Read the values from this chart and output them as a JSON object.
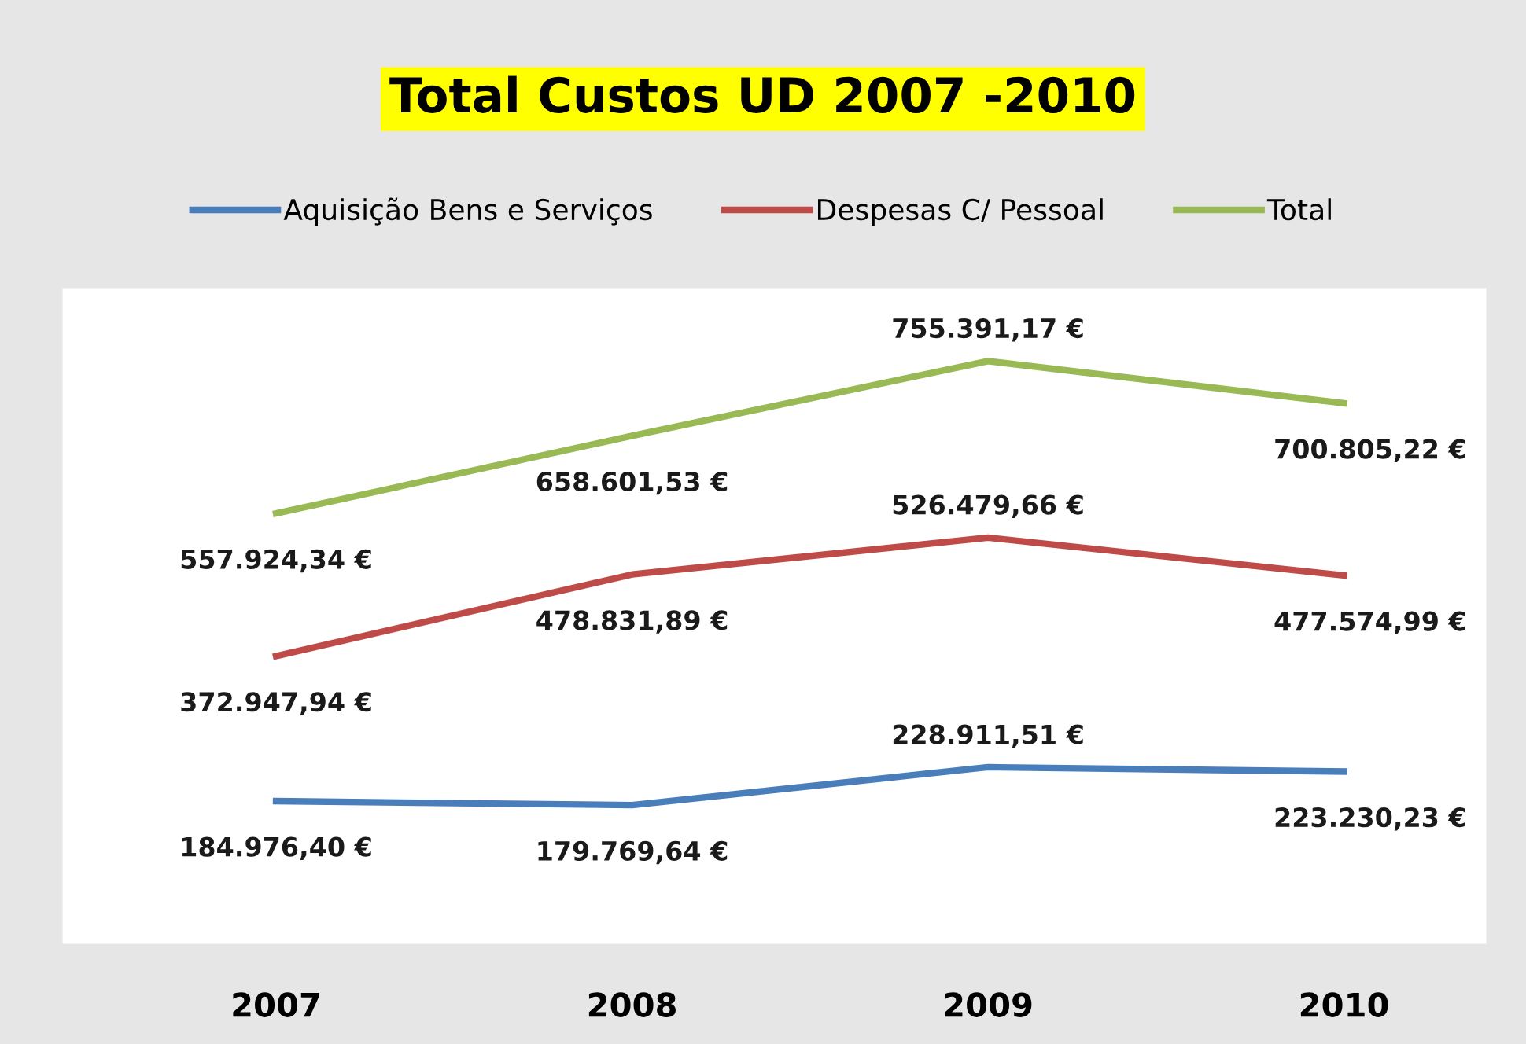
{
  "chart_data": {
    "type": "line",
    "title": "Total Custos UD 2007 -2010",
    "categories": [
      "2007",
      "2008",
      "2009",
      "2010"
    ],
    "ylim": [
      0,
      850000
    ],
    "tick_labels": "x",
    "grid": false,
    "legend": "top",
    "marker": "none",
    "line_style": "solid",
    "series": [
      {
        "name": "Aquisição Bens e Serviços",
        "color": "#4a7ebb",
        "values": [
          184976.4,
          179769.64,
          228911.51,
          223230.23
        ],
        "value_labels": [
          "184.976,40 €",
          "179.769,64 €",
          "228.911,51 €",
          "223.230,23 €"
        ]
      },
      {
        "name": "Despesas C/ Pessoal",
        "color": "#be4b48",
        "values": [
          372947.94,
          478831.89,
          526479.66,
          477574.99
        ],
        "value_labels": [
          "372.947,94 €",
          "478.831,89 €",
          "526.479,66 €",
          "477.574,99 €"
        ]
      },
      {
        "name": "Total",
        "color": "#98b954",
        "values": [
          557924.34,
          658601.53,
          755391.17,
          700805.22
        ],
        "value_labels": [
          "557.924,34 €",
          "658.601,53 €",
          "755.391,17 €",
          "700.805,22 €"
        ]
      }
    ]
  }
}
